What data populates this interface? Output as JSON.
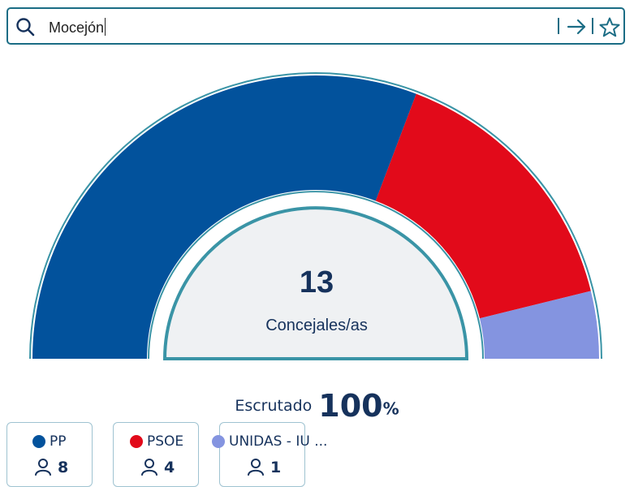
{
  "search": {
    "query": "Mocejón",
    "icons": {
      "search": "search-icon",
      "go": "arrow-right-icon",
      "favorite": "star-icon"
    },
    "accent_color": "#1b6d85"
  },
  "chart_data": {
    "type": "pie",
    "variant": "parliament-semicircle",
    "total_seats": 13,
    "center_value": "13",
    "center_label": "Concejales/as",
    "categories": [
      "PP",
      "PSOE",
      "UNIDAS - IU ..."
    ],
    "values": [
      8,
      4,
      1
    ],
    "colors": [
      "#02529c",
      "#e20a1a",
      "#8494e0"
    ]
  },
  "escrutado": {
    "label": "Escrutado",
    "value": "100",
    "unit": "%"
  },
  "parties": [
    {
      "name": "PP",
      "seats": "8",
      "color": "#02529c"
    },
    {
      "name": "PSOE",
      "seats": "4",
      "color": "#e20a1a"
    },
    {
      "name": "UNIDAS - IU ...",
      "seats": "1",
      "color": "#8494e0"
    }
  ]
}
